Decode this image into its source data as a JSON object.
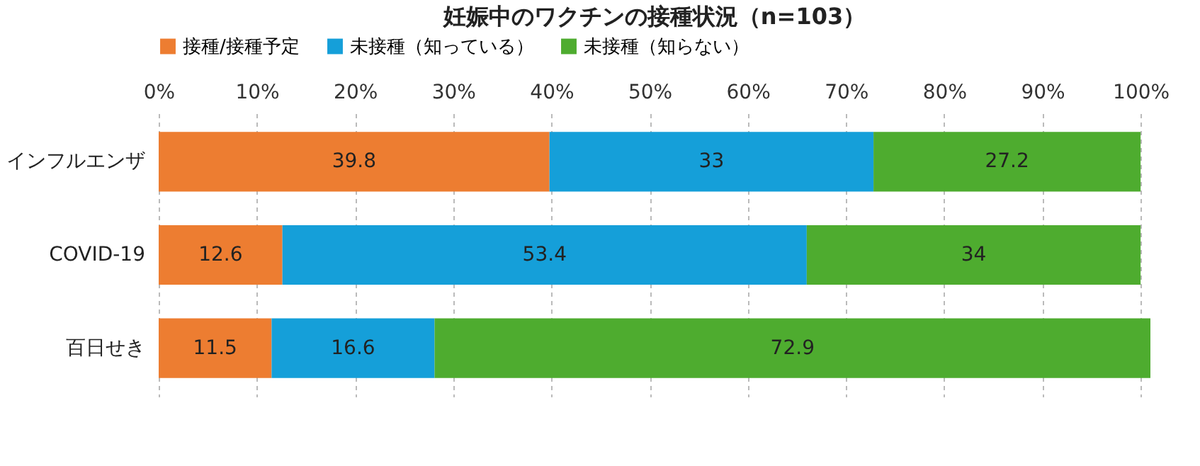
{
  "chart_data": {
    "type": "bar",
    "orientation": "horizontal",
    "stacked": true,
    "title": "妊娠中のワクチンの接種状況（n=103）",
    "categories": [
      "インフルエンザ",
      "COVID-19",
      "百日せき"
    ],
    "series": [
      {
        "name": "接種/接種予定",
        "color": "#ed7d31",
        "values": [
          39.8,
          12.6,
          11.5
        ]
      },
      {
        "name": "未接種（知っている）",
        "color": "#159fd9",
        "values": [
          33,
          53.4,
          16.6
        ]
      },
      {
        "name": "未接種（知らない）",
        "color": "#4eac2f",
        "values": [
          27.2,
          34,
          72.9
        ]
      }
    ],
    "xlim": [
      0,
      101
    ],
    "xticks": [
      {
        "value": 0,
        "label": "0%"
      },
      {
        "value": 10,
        "label": "10%"
      },
      {
        "value": 20,
        "label": "20%"
      },
      {
        "value": 30,
        "label": "30%"
      },
      {
        "value": 40,
        "label": "40%"
      },
      {
        "value": 50,
        "label": "50%"
      },
      {
        "value": 60,
        "label": "60%"
      },
      {
        "value": 70,
        "label": "70%"
      },
      {
        "value": 80,
        "label": "80%"
      },
      {
        "value": 90,
        "label": "90%"
      },
      {
        "value": 100,
        "label": "100%"
      }
    ],
    "grid": "x",
    "legend": "top",
    "data_labels": true
  }
}
